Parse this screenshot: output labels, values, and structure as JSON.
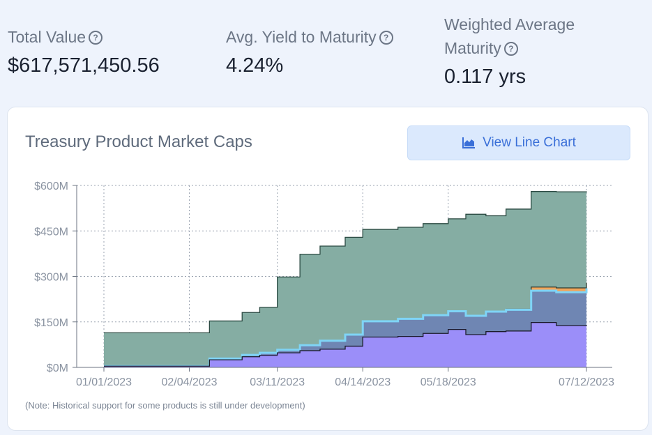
{
  "stats": [
    {
      "label": "Total Value",
      "value": "$617,571,450.56"
    },
    {
      "label": "Avg. Yield to Maturity",
      "value": "4.24%"
    },
    {
      "label_line1": "Weighted Average",
      "label_line2": "Maturity",
      "value": "0.117 yrs"
    }
  ],
  "help_glyph": "?",
  "card": {
    "title": "Treasury Product Market Caps",
    "button_label": "View Line Chart",
    "button_icon": "area-chart-icon",
    "note": "(Note: Historical support for some products is still under development)"
  },
  "colors": {
    "series_top": "#85ada3",
    "series_band": "#6f86b3",
    "series_base": "#9b8ef9",
    "highlight_line": "#7fd4f6",
    "orange": "#f2a55a",
    "button_text": "#3a6fd8"
  },
  "chart_data": {
    "type": "area",
    "stacked": true,
    "x_tick_labels": [
      "01/01/2023",
      "02/04/2023",
      "03/11/2023",
      "04/14/2023",
      "05/18/2023",
      "07/12/2023"
    ],
    "y_tick_labels": [
      "$0M",
      "$150M",
      "$300M",
      "$450M",
      "$600M"
    ],
    "ylim": [
      0,
      600
    ],
    "grid": true,
    "x": [
      "01/01/2023",
      "01/15/2023",
      "02/04/2023",
      "02/12/2023",
      "02/25/2023",
      "03/04/2023",
      "03/11/2023",
      "03/20/2023",
      "03/28/2023",
      "04/07/2023",
      "04/14/2023",
      "04/28/2023",
      "05/08/2023",
      "05/18/2023",
      "05/25/2023",
      "06/02/2023",
      "06/10/2023",
      "06/20/2023",
      "06/30/2023",
      "07/12/2023"
    ],
    "series": [
      {
        "values": [
          4,
          4,
          4,
          25,
          35,
          40,
          48,
          55,
          60,
          70,
          100,
          102,
          112,
          125,
          108,
          118,
          120,
          148,
          138,
          136
        ]
      },
      {
        "values": [
          0,
          0,
          0,
          4,
          6,
          8,
          10,
          18,
          28,
          38,
          52,
          58,
          60,
          60,
          62,
          66,
          70,
          105,
          110,
          125
        ]
      },
      {
        "values": [
          0,
          0,
          0,
          0,
          0,
          0,
          0,
          0,
          0,
          0,
          0,
          0,
          0,
          0,
          0,
          0,
          2,
          12,
          14,
          18
        ]
      },
      {
        "values": [
          110,
          110,
          110,
          124,
          140,
          150,
          240,
          300,
          312,
          321,
          303,
          302,
          302,
          305,
          335,
          316,
          330,
          315,
          317,
          298
        ]
      }
    ]
  }
}
